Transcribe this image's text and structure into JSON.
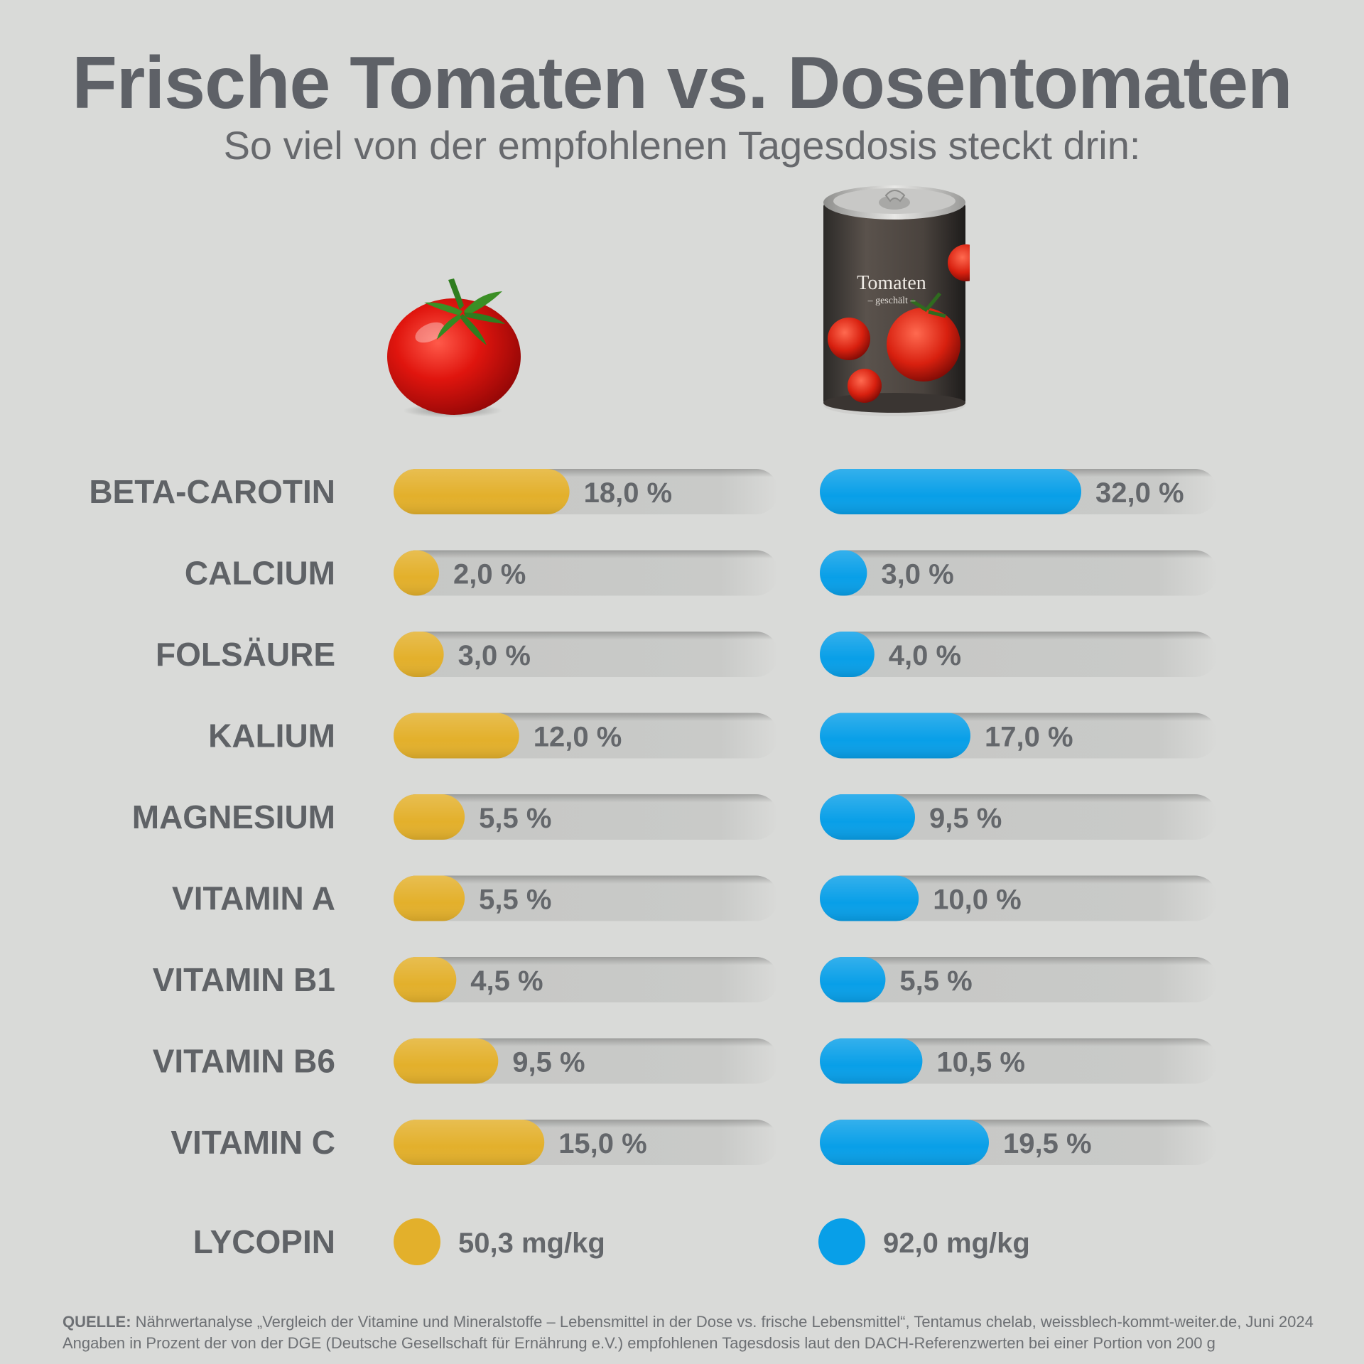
{
  "title": "Frische Tomaten vs. Dosentomaten",
  "subtitle": "So viel von der empfohlenen Tagesdosis steckt drin:",
  "can_label": {
    "brand": "Tomaten",
    "sub": "– geschält –"
  },
  "colors": {
    "fresh": "#e3b02b",
    "canned": "#089fe8",
    "track": "#c9cac8",
    "text": "#5f6266"
  },
  "footer": {
    "source_key": "QUELLE:",
    "source_text": " Nährwertanalyse „Vergleich der Vitamine und Mineralstoffe – Lebensmittel in der Dose vs. frische Lebensmittel“, Tentamus chelab, weissblech-kommt-weiter.de, Juni 2024",
    "note": "Angaben in Prozent der von der DGE (Deutsche Gesellschaft für Ernährung e.V.) empfohlenen Tagesdosis laut den DACH-Referenzwerten bei einer Portion von 200 g"
  },
  "chart_data": {
    "type": "bar",
    "categories": [
      "BETA-CAROTIN",
      "CALCIUM",
      "FOLSÄURE",
      "KALIUM",
      "MAGNESIUM",
      "VITAMIN A",
      "VITAMIN B1",
      "VITAMIN B6",
      "VITAMIN C"
    ],
    "series": [
      {
        "values": [
          18.0,
          2.0,
          3.0,
          12.0,
          5.5,
          5.5,
          4.5,
          9.5,
          15.0
        ],
        "labels": [
          "18,0 %",
          "2,0 %",
          "3,0 %",
          "12,0 %",
          "5,5 %",
          "5,5 %",
          "4,5 %",
          "9,5 %",
          "15,0 %"
        ]
      },
      {
        "values": [
          32.0,
          3.0,
          4.0,
          17.0,
          9.5,
          10.0,
          5.5,
          10.5,
          19.5
        ],
        "labels": [
          "32,0 %",
          "3,0 %",
          "4,0 %",
          "17,0 %",
          "9,5 %",
          "10,0 %",
          "5,5 %",
          "10,5 %",
          "19,5 %"
        ]
      }
    ],
    "extra": {
      "category": "LYCOPIN",
      "values": [
        50.3,
        92.0
      ],
      "labels": [
        "50,3 mg/kg",
        "92,0 mg/kg"
      ]
    }
  }
}
